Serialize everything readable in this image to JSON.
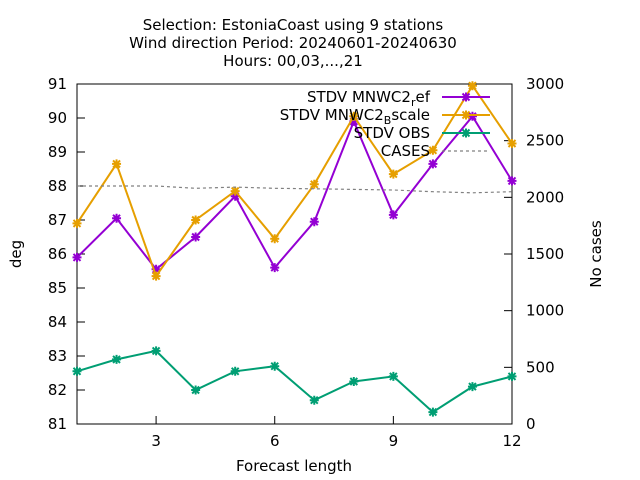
{
  "chart_data": {
    "type": "line",
    "title_lines": [
      "Selection: EstoniaCoast using     9 stations",
      "Wind direction   Period: 20240601-20240630",
      "Hours: 00,03,...,21"
    ],
    "xlabel": "Forecast length",
    "ylabel": "deg",
    "y2label": "No cases",
    "xlim": [
      1,
      12
    ],
    "ylim": [
      81,
      91
    ],
    "y2lim": [
      0,
      3000
    ],
    "xticks": [
      3,
      6,
      9,
      12
    ],
    "yticks": [
      81,
      82,
      83,
      84,
      85,
      86,
      87,
      88,
      89,
      90,
      91
    ],
    "y2ticks": [
      0,
      500,
      1000,
      1500,
      2000,
      2500,
      3000
    ],
    "legend_position": "top-right",
    "x": [
      1,
      2,
      3,
      4,
      5,
      6,
      7,
      8,
      9,
      10,
      11,
      12
    ],
    "series": [
      {
        "name": "STDV MNWC2_ref",
        "legend_main": "STDV MNWC2",
        "legend_sub": "r",
        "legend_tail": "ef",
        "color": "#9400d3",
        "axis": "y",
        "values": [
          85.9,
          87.05,
          85.55,
          86.5,
          87.7,
          85.6,
          86.95,
          89.9,
          87.15,
          88.65,
          90.05,
          88.15
        ]
      },
      {
        "name": "STDV MNWC2_Bscale",
        "legend_main": "STDV MNWC2",
        "legend_sub": "B",
        "legend_tail": "scale",
        "color": "#e69f00",
        "axis": "y",
        "values": [
          86.9,
          88.65,
          85.35,
          87.0,
          87.85,
          86.45,
          88.05,
          90.05,
          88.35,
          89.05,
          90.95,
          89.25
        ]
      },
      {
        "name": "STDV OBS",
        "legend_main": "STDV OBS",
        "legend_sub": "",
        "legend_tail": "",
        "color": "#009e73",
        "axis": "y",
        "values": [
          82.55,
          82.9,
          83.15,
          82.0,
          82.55,
          82.7,
          81.7,
          82.25,
          82.4,
          81.35,
          82.1,
          82.4
        ]
      },
      {
        "name": "CASES",
        "legend_main": "CASES",
        "legend_sub": "",
        "legend_tail": "",
        "color": "#808080",
        "axis": "y2",
        "dashed": true,
        "values": [
          2100,
          2100,
          2100,
          2080,
          2090,
          2080,
          2075,
          2070,
          2065,
          2050,
          2040,
          2050
        ]
      }
    ]
  }
}
